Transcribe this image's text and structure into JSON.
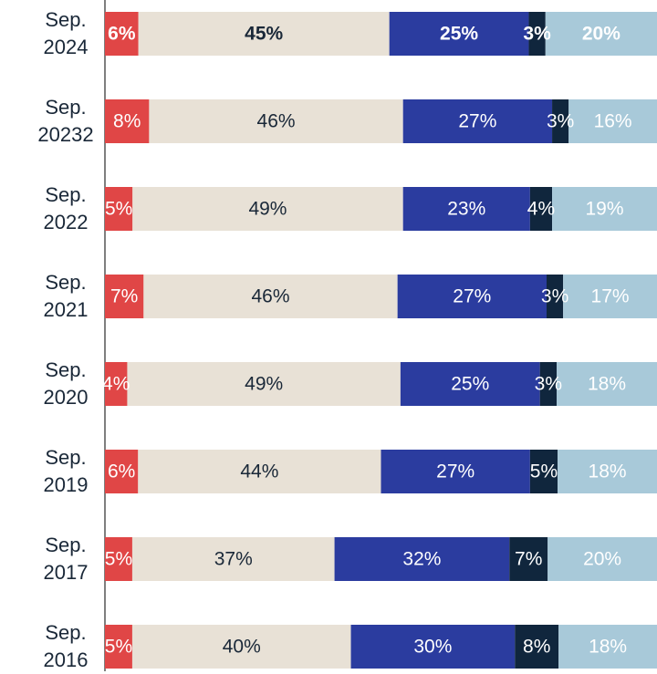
{
  "chart_data": {
    "type": "stacked-bar-horizontal",
    "categories": [
      "Sep. 2024",
      "Sep. 20232",
      "Sep. 2022",
      "Sep. 2021",
      "Sep. 2020",
      "Sep. 2019",
      "Sep. 2017",
      "Sep. 2016"
    ],
    "series": [
      {
        "color": "#e04646",
        "label_color": "#ffffff",
        "values": [
          6,
          8,
          5,
          7,
          4,
          6,
          5,
          5
        ],
        "value_labels": [
          "6%",
          "8%",
          "5%",
          "7%",
          "4%",
          "6%",
          "5%",
          "5%"
        ]
      },
      {
        "color": "#e8e1d6",
        "label_color": "#1a2838",
        "values": [
          45,
          46,
          49,
          46,
          49,
          44,
          37,
          40
        ],
        "value_labels": [
          "45%",
          "46%",
          "49%",
          "46%",
          "49%",
          "44%",
          "37%",
          "40%"
        ]
      },
      {
        "color": "#2b3c9f",
        "label_color": "#ffffff",
        "values": [
          25,
          27,
          23,
          27,
          25,
          27,
          32,
          30
        ],
        "value_labels": [
          "25%",
          "27%",
          "23%",
          "27%",
          "25%",
          "27%",
          "32%",
          "30%"
        ]
      },
      {
        "color": "#10263d",
        "label_color": "#ffffff",
        "values": [
          3,
          3,
          4,
          3,
          3,
          5,
          7,
          8
        ],
        "value_labels": [
          "3%",
          "3%",
          "4%",
          "3%",
          "3%",
          "5%",
          "7%",
          "8%"
        ]
      },
      {
        "color": "#a8c9d9",
        "label_color": "#ffffff",
        "values": [
          20,
          16,
          19,
          17,
          18,
          18,
          20,
          18
        ],
        "value_labels": [
          "20%",
          "16%",
          "19%",
          "17%",
          "18%",
          "18%",
          "20%",
          "18%"
        ]
      }
    ]
  }
}
